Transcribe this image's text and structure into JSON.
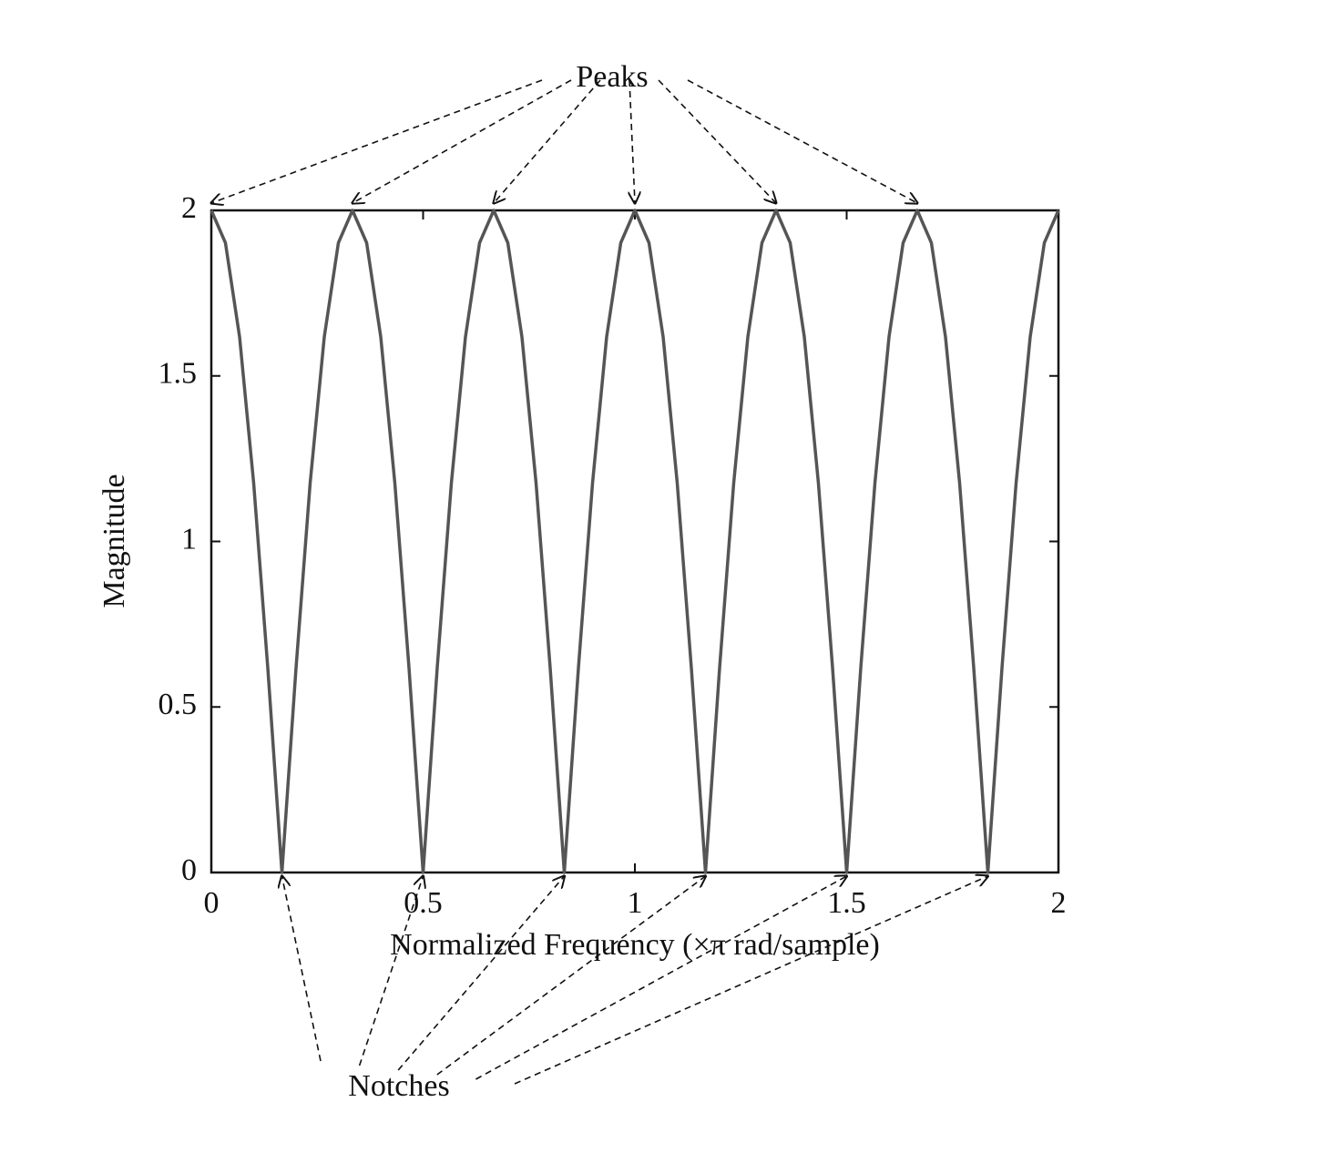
{
  "chart_data": {
    "type": "line",
    "xlabel": "Normalized Frequency (×π rad/sample)",
    "ylabel": "Magnitude",
    "annotations": [
      "Peaks",
      "Notches"
    ],
    "x": [
      0,
      0.0333,
      0.0667,
      0.1,
      0.1333,
      0.1667,
      0.2,
      0.2333,
      0.2667,
      0.3,
      0.3333,
      0.3667,
      0.4,
      0.4333,
      0.4667,
      0.5,
      0.5333,
      0.5667,
      0.6,
      0.6333,
      0.6667,
      0.7,
      0.7333,
      0.7667,
      0.8,
      0.8333,
      0.8667,
      0.9,
      0.9333,
      0.9667,
      1,
      1.0333,
      1.0667,
      1.1,
      1.1333,
      1.1667,
      1.2,
      1.2333,
      1.2667,
      1.3,
      1.3333,
      1.3667,
      1.4,
      1.4333,
      1.4667,
      1.5,
      1.5333,
      1.5667,
      1.6,
      1.6333,
      1.6667,
      1.7,
      1.7333,
      1.7667,
      1.8,
      1.8333,
      1.8667,
      1.9,
      1.9333,
      1.9667,
      2
    ],
    "series": [
      {
        "color": "#555555",
        "values": [
          2,
          1.902,
          1.618,
          1.176,
          0.618,
          0,
          0.618,
          1.176,
          1.618,
          1.902,
          2,
          1.902,
          1.618,
          1.176,
          0.618,
          0,
          0.618,
          1.176,
          1.618,
          1.902,
          2,
          1.902,
          1.618,
          1.176,
          0.618,
          0,
          0.618,
          1.176,
          1.618,
          1.902,
          2,
          1.902,
          1.618,
          1.176,
          0.618,
          0,
          0.618,
          1.176,
          1.618,
          1.902,
          2,
          1.902,
          1.618,
          1.176,
          0.618,
          0,
          0.618,
          1.176,
          1.618,
          1.902,
          2,
          1.902,
          1.618,
          1.176,
          0.618,
          0,
          0.618,
          1.176,
          1.618,
          1.902,
          2
        ]
      }
    ],
    "xlim": [
      0,
      2
    ],
    "xticks": [
      0,
      0.5,
      1,
      1.5,
      2
    ],
    "ylim": [
      0,
      2
    ],
    "yticks": [
      0,
      0.5,
      1,
      1.5,
      2
    ]
  }
}
